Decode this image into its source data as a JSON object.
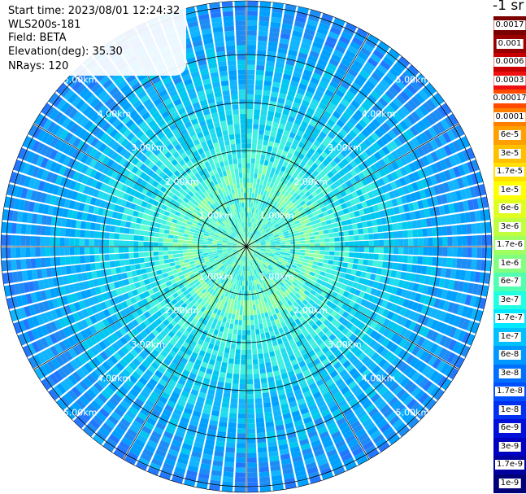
{
  "header": {
    "start_time": "Start time: 2023/08/01 12:24:32",
    "instrument": "WLS200s-181",
    "field": "Field: BETA",
    "elevation": "Elevation(deg): 35.30",
    "nrays": "NRays: 120"
  },
  "unit_label": "-1 sr",
  "ppi": {
    "center": [
      303,
      303
    ],
    "ring_labels": [
      "1.00km",
      "2.00km",
      "3.00km",
      "4.00km",
      "5.00km"
    ],
    "spoke_angles_deg": [
      0,
      30,
      60,
      90,
      120,
      150,
      180,
      210,
      240,
      270,
      300,
      330
    ],
    "gate_count": 50,
    "ray_count": 120
  },
  "colorbar": {
    "labels": [
      "0.0017",
      "0.001",
      "0.0006",
      "0.0003",
      "0.00017",
      "0.0001",
      "6e-5",
      "3e-5",
      "1.7e-5",
      "1e-5",
      "6e-6",
      "3e-6",
      "1.7e-6",
      "1e-6",
      "6e-7",
      "3e-7",
      "1.7e-7",
      "1e-7",
      "6e-8",
      "3e-8",
      "1.7e-8",
      "1e-8",
      "6e-9",
      "3e-9",
      "1.7e-9",
      "1e-9"
    ],
    "colors": [
      "#7a0000",
      "#990000",
      "#c80000",
      "#ee1010",
      "#ff4a00",
      "#ff8000",
      "#ffa000",
      "#ffc000",
      "#ffe000",
      "#ffff00",
      "#e0ff20",
      "#c0ff40",
      "#a0ff60",
      "#80ff80",
      "#50ffb0",
      "#20ffe0",
      "#00e8ff",
      "#00c0ff",
      "#0098ff",
      "#0070ff",
      "#0050ff",
      "#0030f0",
      "#0010d8",
      "#0000c0",
      "#0000a0",
      "#000078"
    ]
  }
}
